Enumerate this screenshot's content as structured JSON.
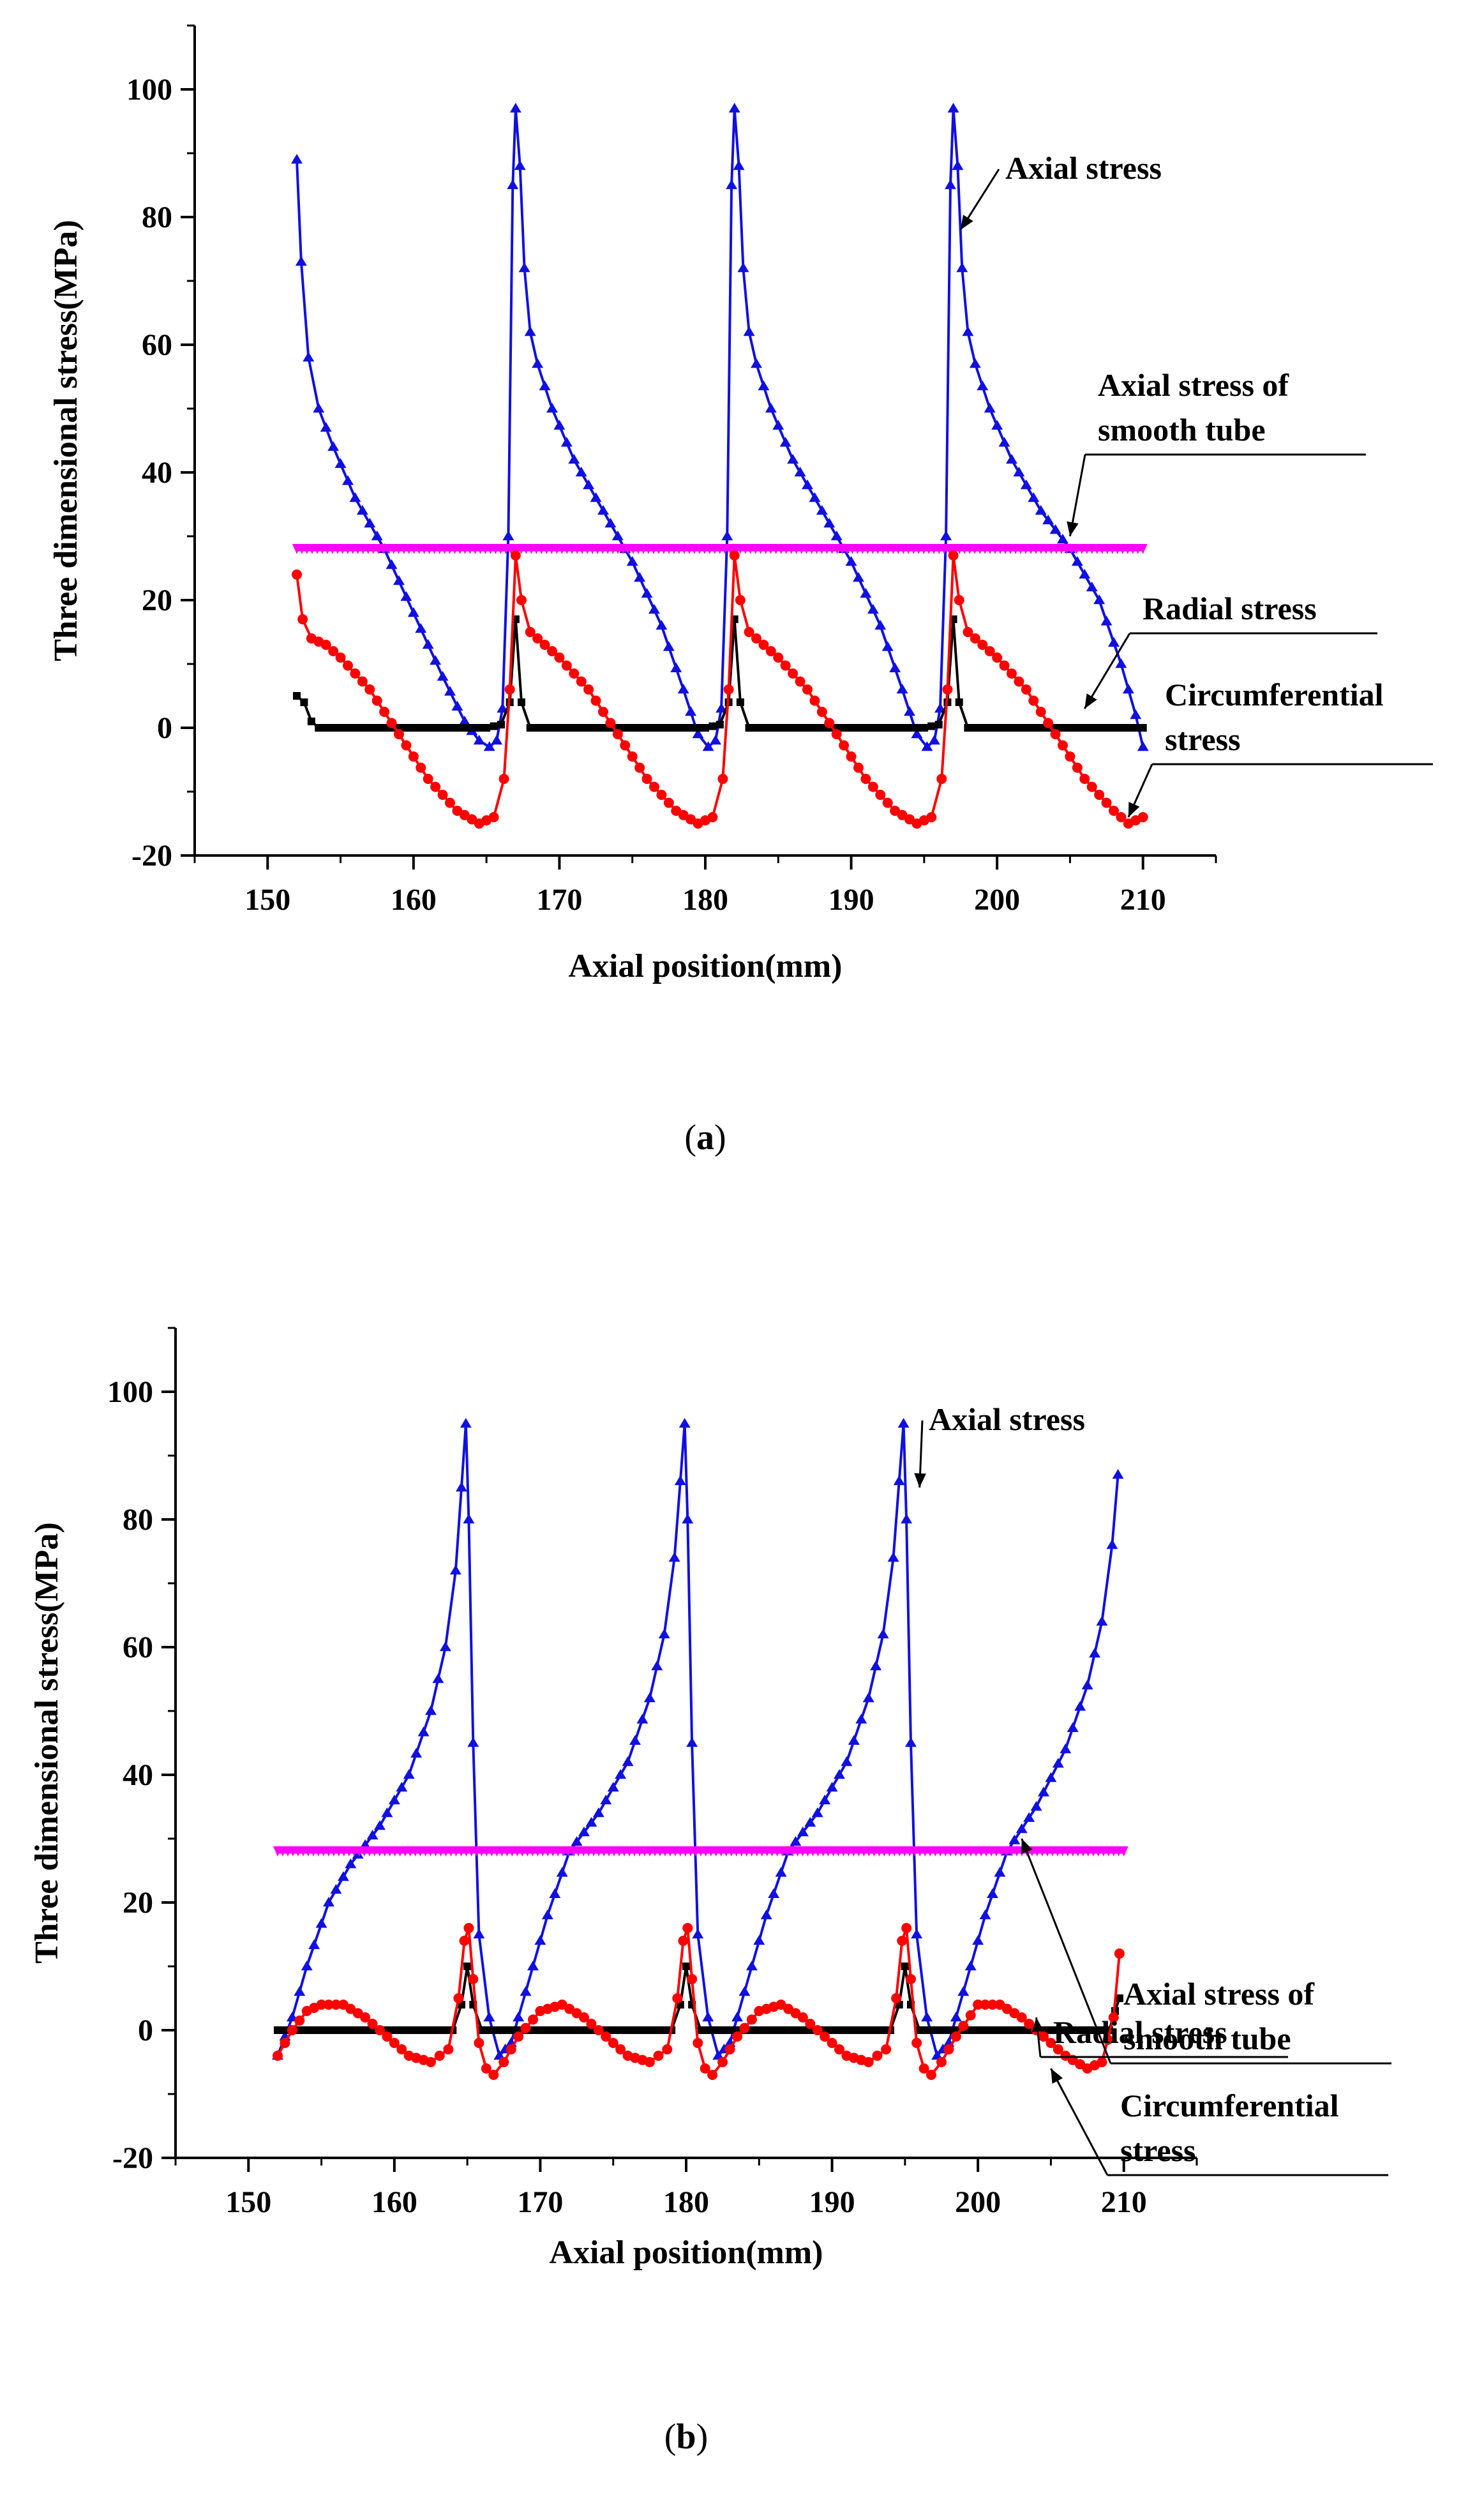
{
  "chart_data": [
    {
      "id": "a",
      "type": "line",
      "caption_open": "(",
      "caption_label": "a",
      "caption_close": ")",
      "xlabel": "Axial position(mm)",
      "ylabel": "Three dimensional stress(MPa)",
      "xlim": [
        145,
        215
      ],
      "ylim": [
        -20,
        110
      ],
      "xticks": [
        "150",
        "160",
        "170",
        "180",
        "190",
        "200",
        "210"
      ],
      "yticks": [
        "-20",
        "0",
        "20",
        "40",
        "60",
        "80",
        "100"
      ],
      "series": [
        {
          "name": "Axial stress",
          "color": "#1010e0",
          "marker": "triangle",
          "x": [
            152,
            152.3,
            152.8,
            153.5,
            154.5,
            156,
            158,
            160,
            162,
            163.5,
            164.5,
            165.2,
            165.7,
            166.1,
            166.5,
            166.8,
            167.0,
            167.3,
            167.6,
            168,
            168.5,
            169.5,
            171,
            173,
            175,
            177,
            178.5,
            179.5,
            180.2,
            180.7,
            181.1,
            181.5,
            181.8,
            182.0,
            182.3,
            182.6,
            183,
            183.5,
            184.5,
            186,
            188,
            190,
            192,
            193.5,
            194.5,
            195.2,
            195.7,
            196.1,
            196.5,
            196.8,
            197.0,
            197.3,
            197.6,
            198,
            198.5,
            199.5,
            201,
            203,
            205,
            207,
            208.5,
            209.5,
            210
          ],
          "y": [
            89,
            73,
            58,
            50,
            44,
            36,
            28,
            18,
            8,
            1,
            -2,
            -3,
            -2,
            3,
            30,
            85,
            97,
            88,
            72,
            62,
            57,
            50,
            42,
            34,
            26,
            16,
            6,
            -1,
            -3,
            -2,
            3,
            30,
            85,
            97,
            88,
            72,
            62,
            57,
            50,
            42,
            34,
            26,
            16,
            6,
            -1,
            -3,
            -2,
            3,
            30,
            85,
            97,
            88,
            72,
            62,
            57,
            50,
            42,
            34,
            28,
            20,
            10,
            2,
            -3
          ]
        },
        {
          "name": "Axial stress of smooth tube",
          "color": "#ff00ff",
          "marker": "triangle-down",
          "x": [
            152,
            210
          ],
          "y": [
            28,
            28
          ]
        },
        {
          "name": "Radial stress",
          "color": "#000000",
          "marker": "square",
          "x": [
            152,
            152.5,
            153,
            153.5,
            165,
            166,
            166.6,
            167,
            167.4,
            168,
            180,
            181,
            181.6,
            182,
            182.4,
            183,
            195,
            196,
            196.6,
            197,
            197.4,
            198,
            210
          ],
          "y": [
            5,
            4,
            1,
            0,
            0,
            0.5,
            4,
            17,
            4,
            0,
            0,
            0.5,
            4,
            17,
            4,
            0,
            0,
            0.5,
            4,
            17,
            4,
            0,
            0
          ]
        },
        {
          "name": "Circumferential stress",
          "color": "#ff0000",
          "marker": "circle",
          "x": [
            152,
            152.4,
            153,
            154,
            155,
            157,
            159,
            161,
            163,
            164.5,
            165.5,
            166.2,
            166.6,
            167,
            167.4,
            168,
            169,
            170,
            172,
            174,
            176,
            178,
            179.5,
            180.5,
            181.2,
            181.6,
            182,
            182.4,
            183,
            184,
            185,
            187,
            189,
            191,
            193,
            194.5,
            195.5,
            196.2,
            196.6,
            197,
            197.4,
            198,
            199,
            200,
            202,
            204,
            206,
            208,
            209,
            210
          ],
          "y": [
            24,
            17,
            14,
            13,
            11,
            6,
            -1,
            -8,
            -13,
            -15,
            -14,
            -8,
            6,
            27,
            20,
            15,
            13,
            11,
            6,
            -1,
            -8,
            -13,
            -15,
            -14,
            -8,
            6,
            27,
            20,
            15,
            13,
            11,
            6,
            -1,
            -8,
            -13,
            -15,
            -14,
            -8,
            6,
            27,
            20,
            15,
            13,
            11,
            6,
            -1,
            -8,
            -13,
            -15,
            -14
          ]
        }
      ],
      "annotations": [
        {
          "name": "annot-axial-stress",
          "lines": [
            "Axial stress"
          ],
          "target": [
            197.5,
            78
          ]
        },
        {
          "name": "annot-axial-smooth",
          "lines": [
            "Axial stress of",
            "smooth tube"
          ],
          "target": [
            205,
            30
          ]
        },
        {
          "name": "annot-radial",
          "lines": [
            "Radial stress"
          ],
          "target": [
            206,
            3
          ]
        },
        {
          "name": "annot-circumferential",
          "lines": [
            "Circumferential",
            "stress"
          ],
          "target": [
            209,
            -14
          ]
        }
      ]
    },
    {
      "id": "b",
      "type": "line",
      "caption_open": "(",
      "caption_label": "b",
      "caption_close": ")",
      "xlabel": "Axial position(mm)",
      "ylabel": "Three dimensional stress(MPa)",
      "xlim": [
        145,
        215
      ],
      "ylim": [
        -20,
        110
      ],
      "xticks": [
        "150",
        "160",
        "170",
        "180",
        "190",
        "200",
        "210"
      ],
      "yticks": [
        "-20",
        "0",
        "20",
        "40",
        "60",
        "80",
        "100"
      ],
      "series": [
        {
          "name": "Axial stress",
          "color": "#1010e0",
          "marker": "triangle",
          "x": [
            152,
            153,
            154,
            155.5,
            157,
            159,
            161,
            162.5,
            163.5,
            164.2,
            164.6,
            164.9,
            165.1,
            165.4,
            165.8,
            166.5,
            167.2,
            168,
            169,
            170.5,
            172,
            174,
            176,
            177.5,
            178.5,
            179.2,
            179.6,
            179.9,
            180.1,
            180.4,
            180.8,
            181.5,
            182.2,
            183,
            184,
            185.5,
            187,
            189,
            191,
            192.5,
            193.5,
            194.2,
            194.6,
            194.9,
            195.1,
            195.4,
            195.8,
            196.5,
            197.2,
            198,
            199,
            200.5,
            202,
            204,
            206,
            207.5,
            208.5,
            209.2,
            209.6
          ],
          "y": [
            -4,
            2,
            10,
            20,
            26,
            32,
            40,
            50,
            60,
            72,
            85,
            95,
            80,
            45,
            15,
            2,
            -4,
            -2,
            6,
            18,
            28,
            34,
            42,
            52,
            62,
            74,
            86,
            95,
            80,
            45,
            15,
            2,
            -4,
            -2,
            6,
            18,
            28,
            34,
            42,
            52,
            62,
            74,
            86,
            95,
            80,
            45,
            15,
            2,
            -4,
            -2,
            6,
            18,
            28,
            35,
            44,
            54,
            64,
            76,
            87
          ]
        },
        {
          "name": "Axial stress of smooth tube",
          "color": "#ff00ff",
          "marker": "triangle-down",
          "x": [
            152,
            210
          ],
          "y": [
            28,
            28
          ]
        },
        {
          "name": "Radial stress",
          "color": "#000000",
          "marker": "square",
          "x": [
            152,
            164,
            164.6,
            165,
            165.4,
            166,
            179,
            179.6,
            180,
            180.4,
            181,
            194,
            194.6,
            195,
            195.4,
            196,
            209,
            209.4,
            209.7
          ],
          "y": [
            0,
            0,
            4,
            10,
            4,
            0,
            0,
            4,
            10,
            4,
            0,
            0,
            4,
            10,
            4,
            0,
            0,
            3,
            5
          ]
        },
        {
          "name": "Circumferential stress",
          "color": "#ff0000",
          "marker": "circle",
          "x": [
            152,
            153,
            154,
            155,
            156.5,
            158,
            159.5,
            161,
            162.5,
            163.7,
            164.4,
            164.8,
            165.1,
            165.4,
            165.8,
            166.3,
            166.8,
            167.5,
            168.5,
            170,
            171.5,
            173,
            174.5,
            176,
            177.5,
            178.7,
            179.4,
            179.8,
            180.1,
            180.4,
            180.8,
            181.3,
            181.8,
            182.5,
            183.5,
            185,
            186.5,
            188,
            189.5,
            191,
            192.5,
            193.7,
            194.4,
            194.8,
            195.1,
            195.4,
            195.8,
            196.3,
            196.8,
            197.5,
            198.5,
            200,
            201.5,
            203,
            204.5,
            206,
            207.5,
            208.5,
            209.3,
            209.7
          ],
          "y": [
            -4,
            0,
            3,
            4,
            4,
            2,
            -1,
            -4,
            -5,
            -3,
            5,
            14,
            16,
            8,
            -2,
            -6,
            -7,
            -5,
            -1,
            3,
            4,
            2,
            -1,
            -4,
            -5,
            -3,
            5,
            14,
            16,
            8,
            -2,
            -6,
            -7,
            -5,
            -1,
            3,
            4,
            2,
            -1,
            -4,
            -5,
            -3,
            5,
            14,
            16,
            8,
            -2,
            -6,
            -7,
            -5,
            -1,
            4,
            4,
            2,
            -1,
            -4,
            -6,
            -5,
            2,
            12
          ]
        }
      ],
      "annotations": [
        {
          "name": "annot-axial-stress",
          "lines": [
            "Axial stress"
          ],
          "target": [
            196,
            85
          ]
        },
        {
          "name": "annot-axial-smooth",
          "lines": [
            "Axial stress of",
            "smooth tube"
          ],
          "target": [
            203,
            30
          ]
        },
        {
          "name": "annot-radial",
          "lines": [
            "Radial stress"
          ],
          "target": [
            204,
            2
          ]
        },
        {
          "name": "annot-circumferential",
          "lines": [
            "Circumferential",
            "stress"
          ],
          "target": [
            205,
            -6
          ]
        }
      ]
    }
  ]
}
